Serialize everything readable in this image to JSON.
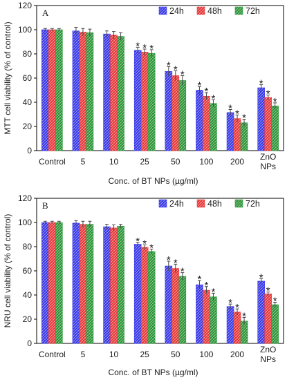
{
  "colors": {
    "h24": "#3b3bf0",
    "h48": "#f03b3b",
    "h72": "#2e9a3a"
  },
  "chart_data": [
    {
      "type": "bar",
      "panel": "A",
      "ylabel": "MTT cell viability (% of control)",
      "xlabel": "Conc. of BT NPs (µg/ml)",
      "ylim": [
        0,
        120
      ],
      "yticks": [
        0,
        20,
        40,
        60,
        80,
        100,
        120
      ],
      "legend_position": "top-right",
      "categories": [
        "Control",
        "5",
        "10",
        "25",
        "50",
        "100",
        "200",
        "ZnO NPs"
      ],
      "category_lines": [
        [
          "Control"
        ],
        [
          "5"
        ],
        [
          "10"
        ],
        [
          "25"
        ],
        [
          "50"
        ],
        [
          "100"
        ],
        [
          "200"
        ],
        [
          "ZnO",
          "NPs"
        ]
      ],
      "series": [
        {
          "name": "24h",
          "values": [
            100,
            99,
            96.5,
            83,
            65.5,
            50,
            31.5,
            52
          ],
          "errors": [
            1,
            3,
            2.5,
            2.5,
            4,
            3,
            2.5,
            2.5
          ]
        },
        {
          "name": "48h",
          "values": [
            100,
            98,
            95.5,
            81.5,
            62,
            45,
            26.5,
            44
          ],
          "errors": [
            1,
            3,
            3,
            2.5,
            4,
            3,
            3,
            2
          ]
        },
        {
          "name": "72h",
          "values": [
            100,
            97.5,
            94.5,
            80.5,
            58,
            39,
            23,
            37
          ],
          "errors": [
            1,
            3,
            3,
            3,
            4,
            3,
            3,
            2.5
          ]
        }
      ],
      "significance": [
        [
          false,
          false,
          false,
          true,
          true,
          true,
          true,
          true
        ],
        [
          false,
          false,
          false,
          true,
          true,
          true,
          true,
          true
        ],
        [
          false,
          false,
          false,
          true,
          true,
          true,
          true,
          true
        ]
      ]
    },
    {
      "type": "bar",
      "panel": "B",
      "ylabel": "NRU cell viability (% of control)",
      "xlabel": "Conc. of BT NPs (µg/ml)",
      "ylim": [
        0,
        120
      ],
      "yticks": [
        0,
        20,
        40,
        60,
        80,
        100,
        120
      ],
      "legend_position": "top-right",
      "categories": [
        "Control",
        "5",
        "10",
        "25",
        "50",
        "100",
        "200",
        "ZnO NPs"
      ],
      "category_lines": [
        [
          "Control"
        ],
        [
          "5"
        ],
        [
          "10"
        ],
        [
          "25"
        ],
        [
          "50"
        ],
        [
          "100"
        ],
        [
          "200"
        ],
        [
          "ZnO",
          "NPs"
        ]
      ],
      "series": [
        {
          "name": "24h",
          "values": [
            100,
            99.5,
            96.5,
            82,
            64,
            48.5,
            30.5,
            51.5
          ],
          "errors": [
            1,
            2,
            2,
            1.5,
            4,
            3.5,
            2,
            2
          ]
        },
        {
          "name": "48h",
          "values": [
            100,
            98.5,
            95.5,
            79.5,
            62,
            44,
            26,
            41
          ],
          "errors": [
            1,
            2.5,
            2.5,
            2,
            3.5,
            3,
            2.5,
            1.5
          ]
        },
        {
          "name": "72h",
          "values": [
            100,
            98.5,
            97,
            76,
            55.5,
            38.5,
            18.5,
            32
          ],
          "errors": [
            1,
            2.5,
            1.5,
            2,
            3,
            3,
            3,
            2
          ]
        }
      ],
      "significance": [
        [
          false,
          false,
          false,
          true,
          true,
          true,
          true,
          true
        ],
        [
          false,
          false,
          false,
          true,
          true,
          true,
          true,
          true
        ],
        [
          false,
          false,
          false,
          true,
          true,
          true,
          true,
          true
        ]
      ]
    }
  ]
}
